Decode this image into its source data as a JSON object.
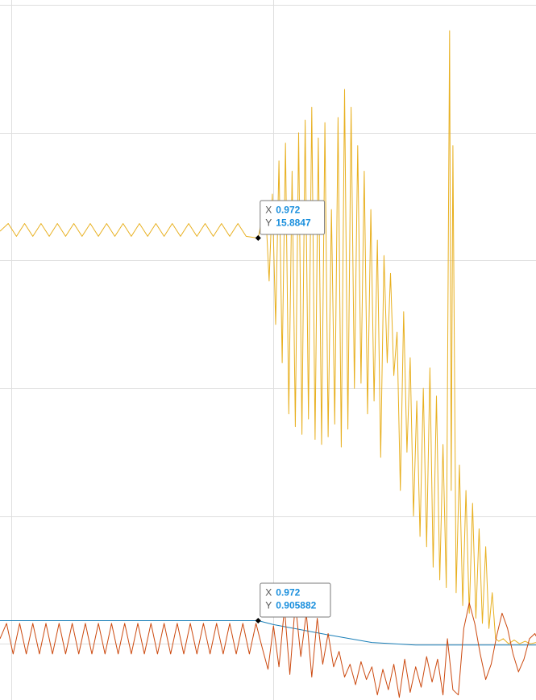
{
  "chart_data": {
    "type": "line",
    "title": "",
    "xlabel": "",
    "ylabel": "",
    "xlim": [
      0.5,
      1.48
    ],
    "ylim": [
      -2.2,
      25.2
    ],
    "grid": true,
    "x_gridlines": [
      0.52,
      1.0,
      1.48
    ],
    "y_gridlines": [
      0,
      5,
      10,
      15,
      20,
      25
    ],
    "series": [
      {
        "color": "#e8b020",
        "points": [
          [
            0.5,
            16.15
          ],
          [
            0.515,
            16.45
          ],
          [
            0.53,
            15.95
          ],
          [
            0.545,
            16.45
          ],
          [
            0.56,
            15.95
          ],
          [
            0.575,
            16.45
          ],
          [
            0.59,
            15.95
          ],
          [
            0.605,
            16.45
          ],
          [
            0.62,
            15.95
          ],
          [
            0.635,
            16.45
          ],
          [
            0.65,
            15.95
          ],
          [
            0.665,
            16.45
          ],
          [
            0.68,
            15.95
          ],
          [
            0.695,
            16.45
          ],
          [
            0.71,
            15.95
          ],
          [
            0.725,
            16.45
          ],
          [
            0.74,
            15.95
          ],
          [
            0.755,
            16.45
          ],
          [
            0.77,
            15.95
          ],
          [
            0.785,
            16.45
          ],
          [
            0.8,
            15.95
          ],
          [
            0.815,
            16.45
          ],
          [
            0.83,
            15.95
          ],
          [
            0.845,
            16.45
          ],
          [
            0.86,
            15.95
          ],
          [
            0.875,
            16.45
          ],
          [
            0.89,
            15.95
          ],
          [
            0.905,
            16.45
          ],
          [
            0.92,
            15.95
          ],
          [
            0.935,
            16.45
          ],
          [
            0.95,
            15.95
          ],
          [
            0.972,
            15.88
          ],
          [
            0.985,
            17.3
          ],
          [
            0.992,
            14.2
          ],
          [
            0.998,
            17.6
          ],
          [
            1.004,
            12.5
          ],
          [
            1.01,
            18.9
          ],
          [
            1.016,
            11.0
          ],
          [
            1.022,
            19.6
          ],
          [
            1.028,
            9.0
          ],
          [
            1.034,
            18.5
          ],
          [
            1.04,
            8.5
          ],
          [
            1.046,
            20.0
          ],
          [
            1.052,
            8.2
          ],
          [
            1.058,
            20.5
          ],
          [
            1.064,
            8.8
          ],
          [
            1.07,
            21.0
          ],
          [
            1.076,
            8.0
          ],
          [
            1.082,
            19.8
          ],
          [
            1.088,
            7.8
          ],
          [
            1.094,
            20.4
          ],
          [
            1.1,
            8.1
          ],
          [
            1.106,
            17.0
          ],
          [
            1.112,
            8.6
          ],
          [
            1.118,
            20.6
          ],
          [
            1.124,
            7.7
          ],
          [
            1.13,
            21.7
          ],
          [
            1.136,
            8.4
          ],
          [
            1.142,
            21.0
          ],
          [
            1.148,
            10.0
          ],
          [
            1.154,
            19.5
          ],
          [
            1.16,
            10.2
          ],
          [
            1.166,
            18.5
          ],
          [
            1.172,
            9.0
          ],
          [
            1.178,
            17.0
          ],
          [
            1.184,
            9.5
          ],
          [
            1.19,
            15.8
          ],
          [
            1.196,
            7.3
          ],
          [
            1.202,
            15.2
          ],
          [
            1.208,
            11.0
          ],
          [
            1.214,
            14.5
          ],
          [
            1.22,
            10.5
          ],
          [
            1.226,
            12.2
          ],
          [
            1.232,
            6.0
          ],
          [
            1.238,
            13.0
          ],
          [
            1.244,
            7.5
          ],
          [
            1.25,
            11.2
          ],
          [
            1.256,
            5.0
          ],
          [
            1.262,
            9.5
          ],
          [
            1.268,
            4.2
          ],
          [
            1.274,
            10.0
          ],
          [
            1.28,
            3.8
          ],
          [
            1.286,
            10.8
          ],
          [
            1.292,
            3.0
          ],
          [
            1.298,
            9.7
          ],
          [
            1.304,
            2.5
          ],
          [
            1.31,
            7.8
          ],
          [
            1.316,
            2.2
          ],
          [
            1.322,
            24.0
          ],
          [
            1.325,
            6.0
          ],
          [
            1.328,
            19.5
          ],
          [
            1.334,
            2.0
          ],
          [
            1.34,
            7.0
          ],
          [
            1.346,
            1.5
          ],
          [
            1.352,
            6.0
          ],
          [
            1.358,
            1.2
          ],
          [
            1.364,
            5.5
          ],
          [
            1.37,
            1.0
          ],
          [
            1.376,
            4.5
          ],
          [
            1.382,
            0.8
          ],
          [
            1.388,
            3.8
          ],
          [
            1.394,
            0.6
          ],
          [
            1.4,
            2.0
          ],
          [
            1.406,
            0.2
          ],
          [
            1.412,
            0.1
          ],
          [
            1.42,
            0.2
          ],
          [
            1.43,
            0.0
          ],
          [
            1.44,
            0.15
          ],
          [
            1.45,
            0.0
          ],
          [
            1.46,
            0.1
          ],
          [
            1.47,
            0.0
          ],
          [
            1.48,
            0.05
          ]
        ]
      },
      {
        "color": "#1a7fb8",
        "points": [
          [
            0.5,
            0.906
          ],
          [
            0.972,
            0.906
          ],
          [
            1.0,
            0.75
          ],
          [
            1.1,
            0.35
          ],
          [
            1.18,
            0.05
          ],
          [
            1.26,
            -0.05
          ],
          [
            1.35,
            -0.05
          ],
          [
            1.48,
            -0.05
          ]
        ]
      },
      {
        "color": "#cc4a10",
        "points": [
          [
            0.5,
            0.2
          ],
          [
            0.512,
            0.8
          ],
          [
            0.524,
            -0.4
          ],
          [
            0.536,
            0.8
          ],
          [
            0.548,
            -0.4
          ],
          [
            0.56,
            0.8
          ],
          [
            0.572,
            -0.4
          ],
          [
            0.584,
            0.8
          ],
          [
            0.596,
            -0.4
          ],
          [
            0.608,
            0.8
          ],
          [
            0.62,
            -0.4
          ],
          [
            0.632,
            0.8
          ],
          [
            0.644,
            -0.4
          ],
          [
            0.656,
            0.8
          ],
          [
            0.668,
            -0.4
          ],
          [
            0.68,
            0.8
          ],
          [
            0.692,
            -0.4
          ],
          [
            0.704,
            0.8
          ],
          [
            0.716,
            -0.4
          ],
          [
            0.728,
            0.8
          ],
          [
            0.74,
            -0.4
          ],
          [
            0.752,
            0.8
          ],
          [
            0.764,
            -0.4
          ],
          [
            0.776,
            0.8
          ],
          [
            0.788,
            -0.4
          ],
          [
            0.8,
            0.8
          ],
          [
            0.812,
            -0.4
          ],
          [
            0.824,
            0.8
          ],
          [
            0.836,
            -0.4
          ],
          [
            0.848,
            0.8
          ],
          [
            0.86,
            -0.4
          ],
          [
            0.872,
            0.8
          ],
          [
            0.884,
            -0.4
          ],
          [
            0.896,
            0.8
          ],
          [
            0.908,
            -0.4
          ],
          [
            0.92,
            0.8
          ],
          [
            0.932,
            -0.4
          ],
          [
            0.944,
            0.8
          ],
          [
            0.956,
            -0.4
          ],
          [
            0.968,
            0.8
          ],
          [
            0.98,
            -0.2
          ],
          [
            0.99,
            -1.0
          ],
          [
            1.0,
            0.7
          ],
          [
            1.01,
            -0.9
          ],
          [
            1.02,
            1.4
          ],
          [
            1.03,
            -1.2
          ],
          [
            1.04,
            1.6
          ],
          [
            1.05,
            -0.5
          ],
          [
            1.06,
            1.2
          ],
          [
            1.07,
            -1.3
          ],
          [
            1.08,
            1.0
          ],
          [
            1.09,
            -0.8
          ],
          [
            1.1,
            0.4
          ],
          [
            1.11,
            -0.9
          ],
          [
            1.12,
            -0.3
          ],
          [
            1.13,
            -1.3
          ],
          [
            1.14,
            -0.8
          ],
          [
            1.15,
            -1.6
          ],
          [
            1.16,
            -0.7
          ],
          [
            1.17,
            -1.4
          ],
          [
            1.18,
            -0.9
          ],
          [
            1.19,
            -2.0
          ],
          [
            1.2,
            -1.0
          ],
          [
            1.21,
            -1.8
          ],
          [
            1.22,
            -0.8
          ],
          [
            1.23,
            -2.1
          ],
          [
            1.24,
            -0.6
          ],
          [
            1.25,
            -1.9
          ],
          [
            1.26,
            -0.9
          ],
          [
            1.27,
            -1.7
          ],
          [
            1.28,
            -0.5
          ],
          [
            1.29,
            -1.5
          ],
          [
            1.3,
            -0.6
          ],
          [
            1.31,
            -2.0
          ],
          [
            1.318,
            0.2
          ],
          [
            1.328,
            -1.8
          ],
          [
            1.338,
            -2.0
          ],
          [
            1.348,
            0.6
          ],
          [
            1.358,
            1.6
          ],
          [
            1.368,
            0.8
          ],
          [
            1.378,
            -0.4
          ],
          [
            1.388,
            -1.4
          ],
          [
            1.398,
            -0.8
          ],
          [
            1.408,
            0.3
          ],
          [
            1.418,
            1.2
          ],
          [
            1.428,
            0.6
          ],
          [
            1.438,
            -0.4
          ],
          [
            1.448,
            -1.1
          ],
          [
            1.458,
            -0.6
          ],
          [
            1.468,
            0.2
          ],
          [
            1.478,
            0.4
          ],
          [
            1.48,
            0.3
          ]
        ]
      }
    ],
    "tooltips": [
      {
        "series_index": 0,
        "x_label": "X",
        "x_value": "0.972",
        "y_label": "Y",
        "y_value": "15.8847",
        "at": [
          0.972,
          15.8847
        ]
      },
      {
        "series_index": 1,
        "x_label": "X",
        "x_value": "0.972",
        "y_label": "Y",
        "y_value": "0.905882",
        "at": [
          0.972,
          0.905882
        ]
      }
    ]
  }
}
